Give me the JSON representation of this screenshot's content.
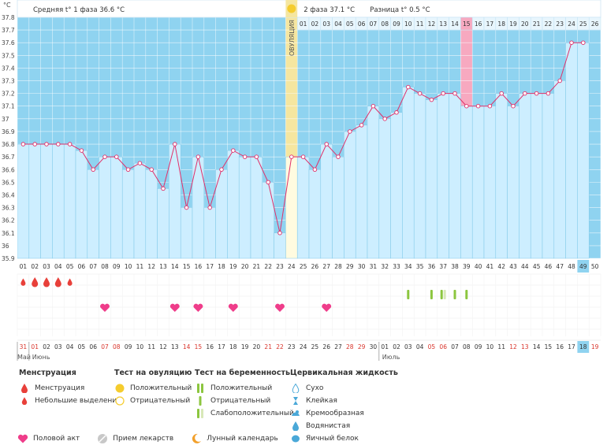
{
  "chart_data": {
    "type": "line",
    "y_unit": "°C",
    "ylim": [
      35.9,
      37.8
    ],
    "y_ticks": [
      "37.8",
      "37.7",
      "37.6",
      "37.5",
      "37.4",
      "37.3",
      "37.2",
      "37.1",
      "37",
      "36.9",
      "36.8",
      "36.7",
      "36.6",
      "36.5",
      "36.4",
      "36.3",
      "36.2",
      "36.1",
      "36",
      "35.9"
    ],
    "cycle_days": [
      "01",
      "02",
      "03",
      "04",
      "05",
      "06",
      "07",
      "08",
      "09",
      "10",
      "11",
      "12",
      "13",
      "14",
      "15",
      "16",
      "17",
      "18",
      "19",
      "20",
      "21",
      "22",
      "23",
      "24",
      "25",
      "26",
      "27",
      "28",
      "29",
      "30",
      "31",
      "32",
      "33",
      "34",
      "35",
      "36",
      "37",
      "38",
      "39",
      "40",
      "41",
      "42",
      "43",
      "44",
      "45",
      "46",
      "47",
      "48",
      "49",
      "50"
    ],
    "calendar_dates": [
      "31",
      "01",
      "02",
      "03",
      "04",
      "05",
      "06",
      "07",
      "08",
      "09",
      "10",
      "11",
      "12",
      "13",
      "14",
      "15",
      "16",
      "17",
      "18",
      "19",
      "20",
      "21",
      "22",
      "23",
      "24",
      "25",
      "26",
      "27",
      "28",
      "29",
      "30",
      "01",
      "02",
      "03",
      "04",
      "05",
      "06",
      "07",
      "08",
      "09",
      "10",
      "11",
      "12",
      "13",
      "14",
      "15",
      "16",
      "17",
      "18",
      "19"
    ],
    "calendar_red_idx": [
      0,
      1,
      7,
      8,
      14,
      15,
      21,
      22,
      28,
      29,
      35,
      36,
      42,
      43,
      49
    ],
    "month_labels": [
      {
        "day_index": 0,
        "label": "Май"
      },
      {
        "day_index": 1,
        "label": "Июнь"
      },
      {
        "day_index": 31,
        "label": "Июль"
      }
    ],
    "temps": [
      36.8,
      36.8,
      36.8,
      36.8,
      36.8,
      36.75,
      36.6,
      36.7,
      36.7,
      36.6,
      36.65,
      36.6,
      36.45,
      36.8,
      36.3,
      36.7,
      36.3,
      36.6,
      36.75,
      36.7,
      36.7,
      36.5,
      36.1,
      36.7,
      36.7,
      36.6,
      36.8,
      36.7,
      36.9,
      36.95,
      37.1,
      37.0,
      37.05,
      37.25,
      37.2,
      37.15,
      37.2,
      37.2,
      37.1,
      37.1,
      37.1,
      37.2,
      37.1,
      37.2,
      37.2,
      37.2,
      37.3,
      37.6,
      37.6,
      null
    ],
    "ovulation_day_index": 23,
    "ovulation_label": "ОВУЛЯЦИЯ",
    "phase2_days": [
      "01",
      "02",
      "03",
      "04",
      "05",
      "06",
      "07",
      "08",
      "09",
      "10",
      "11",
      "12",
      "13",
      "14",
      "15",
      "16",
      "17",
      "18",
      "19",
      "20",
      "21",
      "22",
      "23",
      "24",
      "25",
      "26"
    ],
    "pink_phase2_day_index": 14,
    "current_day_index": 48,
    "menstruation_day_indices": [
      0,
      1,
      2,
      3,
      4
    ],
    "menstruation_small_indices": [
      0,
      4
    ],
    "intercourse_day_indices": [
      7,
      13,
      15,
      18,
      22,
      26
    ],
    "pregnancy_tests": [
      {
        "day_index": 33,
        "kind": "negative"
      },
      {
        "day_index": 35,
        "kind": "negative"
      },
      {
        "day_index": 36,
        "kind": "weak"
      },
      {
        "day_index": 37,
        "kind": "negative"
      },
      {
        "day_index": 38,
        "kind": "negative"
      }
    ],
    "phase1_label": "Средняя t° 1 фаза 36.6 °C",
    "phase2_label": "2 фаза 37.1 °C",
    "diff_label": "Разница t° 0.5 °C",
    "colors": {
      "phase1_bg": "#8fd3f0",
      "phase2_bg": "#8fd3f0",
      "bar_fill": "#cdeeff",
      "bar_stroke": "#7ec8e8",
      "line": "#e0306a",
      "ovulation": "#f5e6a0",
      "pink_day": "#f7a9c0",
      "heart": "#ef3d8a",
      "drop": "#e8403a",
      "pregnancy_neg": "#8cc63f",
      "pregnancy_weak": "#d8e8b8",
      "current_day_bg": "#8fd3f0"
    }
  },
  "legend": {
    "menstruation": {
      "title": "Менструация",
      "items": [
        "Менструация",
        "Небольшие выделения"
      ]
    },
    "ovulation_test": {
      "title": "Тест на овуляцию",
      "items": [
        "Положительный",
        "Отрицательный"
      ]
    },
    "pregnancy_test": {
      "title": "Тест на беременность",
      "items": [
        "Положительный",
        "Отрицательный",
        "Слабоположительный"
      ]
    },
    "cervical_fluid": {
      "title": "Цервикальная жидкость",
      "items": [
        "Сухо",
        "Клейкая",
        "Кремообразная",
        "Водянистая",
        "Яичный белок"
      ]
    },
    "bottom": {
      "intercourse": "Половой акт",
      "medication": "Прием лекарств",
      "lunar": "Лунный календарь"
    }
  }
}
